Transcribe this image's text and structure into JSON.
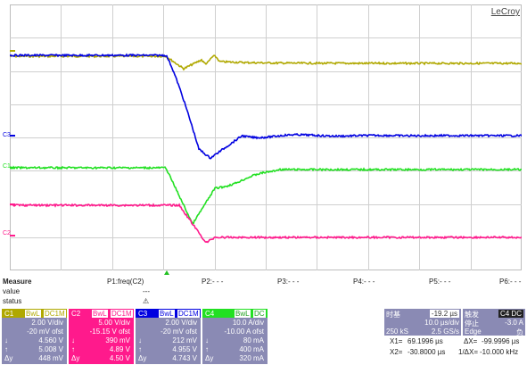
{
  "brand": "LeCroy",
  "trace_labels": {
    "c1": "C1",
    "c2": "C2",
    "c3": "C3"
  },
  "colors": {
    "c1": "#b0a800",
    "c2": "#ff1a8c",
    "c3": "#0000e0",
    "c4": "#22e022",
    "grid": "#cfcfcf",
    "panel": "#8a8ab4",
    "trigger": "#22c022"
  },
  "measure": {
    "title": "Measure",
    "row_value": "value",
    "row_status": "status",
    "p1": "P1:freq(C2)",
    "p1_value": "---",
    "p1_status_icon": "warning-icon",
    "p1_status_glyph": "⚠",
    "p2": "P2:- - -",
    "p3": "P3:- - -",
    "p4": "P4:- - -",
    "p5": "P5:- - -",
    "p6": "P6:- - -"
  },
  "channels": [
    {
      "name": "C1",
      "bwl": "BwL",
      "coupling": "DC1M",
      "vdiv": "2.00 V/div",
      "ofst": "-20 mV ofst",
      "min_sym": "↓",
      "min": "4.560 V",
      "max_sym": "↑",
      "max": "5.008 V",
      "delta_sym": "Δy",
      "delta": "448 mV"
    },
    {
      "name": "C2",
      "bwl": "BwL",
      "coupling": "DC1M",
      "vdiv": "5.00 V/div",
      "ofst": "-15.15 V ofst",
      "min_sym": "↓",
      "min": "390 mV",
      "max_sym": "↑",
      "max": "4.89 V",
      "delta_sym": "Δy",
      "delta": "4.50 V"
    },
    {
      "name": "C3",
      "bwl": "BwL",
      "coupling": "DC1M",
      "vdiv": "2.00 V/div",
      "ofst": "-20 mV ofst",
      "min_sym": "↓",
      "min": "212 mV",
      "max_sym": "↑",
      "max": "4.955 V",
      "delta_sym": "Δy",
      "delta": "4.743 V"
    },
    {
      "name": "C4",
      "bwl": "BwL",
      "coupling": "DC",
      "vdiv": "10.0 A/div",
      "ofst": "-10.00 A ofst",
      "min_sym": "↓",
      "min": "80 mA",
      "max_sym": "↑",
      "max": "400 mA",
      "delta_sym": "Δy",
      "delta": "320 mA"
    }
  ],
  "timebase": {
    "label": "时基",
    "delay": "-19.2 µs",
    "tdiv": "10.0 µs/div",
    "samples": "250 kS",
    "rate": "2.5 GS/s"
  },
  "trigger": {
    "label": "触发",
    "source": "C4 DC",
    "mode": "停止",
    "level": "-3.0 A",
    "type": "Edge",
    "slope": "负"
  },
  "cursors": {
    "x1": "X1=",
    "x1v": "69.1996 µs",
    "dx": "ΔX=",
    "dxv": "-99.9996 µs",
    "x2": "X2=",
    "x2v": "-30.8000 µs",
    "inv": "1/ΔX=",
    "invv": "-10.000 kHz"
  }
}
